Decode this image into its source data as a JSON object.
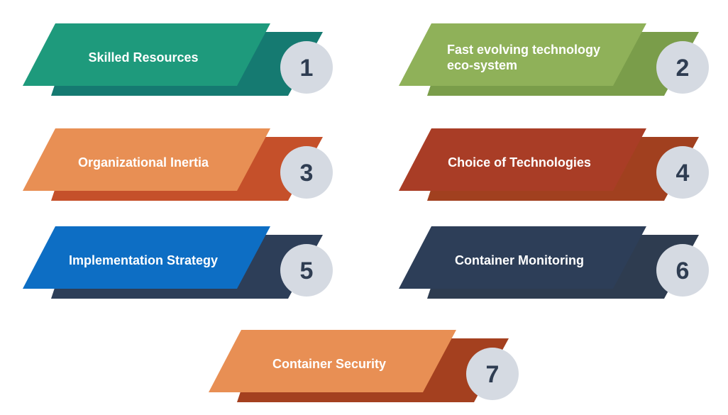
{
  "items": [
    {
      "number": "1",
      "lines": [
        "Skilled Resources"
      ],
      "front_color": "#1e9a7c",
      "back_color": "#157a71"
    },
    {
      "number": "2",
      "lines": [
        "Fast evolving technology",
        "eco-system"
      ],
      "front_color": "#8fb159",
      "back_color": "#7a9d4a"
    },
    {
      "number": "3",
      "lines": [
        "Organizational Inertia"
      ],
      "front_color": "#e88f54",
      "back_color": "#c5502a"
    },
    {
      "number": "4",
      "lines": [
        "Choice of Technologies"
      ],
      "front_color": "#a93d26",
      "back_color": "#a1401f"
    },
    {
      "number": "5",
      "lines": [
        "Implementation Strategy"
      ],
      "front_color": "#0d6ec4",
      "back_color": "#2d3e58"
    },
    {
      "number": "6",
      "lines": [
        "Container Monitoring"
      ],
      "front_color": "#2d3e58",
      "back_color": "#2e3c50"
    },
    {
      "number": "7",
      "lines": [
        "Container Security"
      ],
      "front_color": "#e88f54",
      "back_color": "#a4401f"
    }
  ],
  "colors": {
    "circle_fill": "#d5dae2",
    "number_color": "#2f3d52",
    "text_color": "#ffffff"
  }
}
